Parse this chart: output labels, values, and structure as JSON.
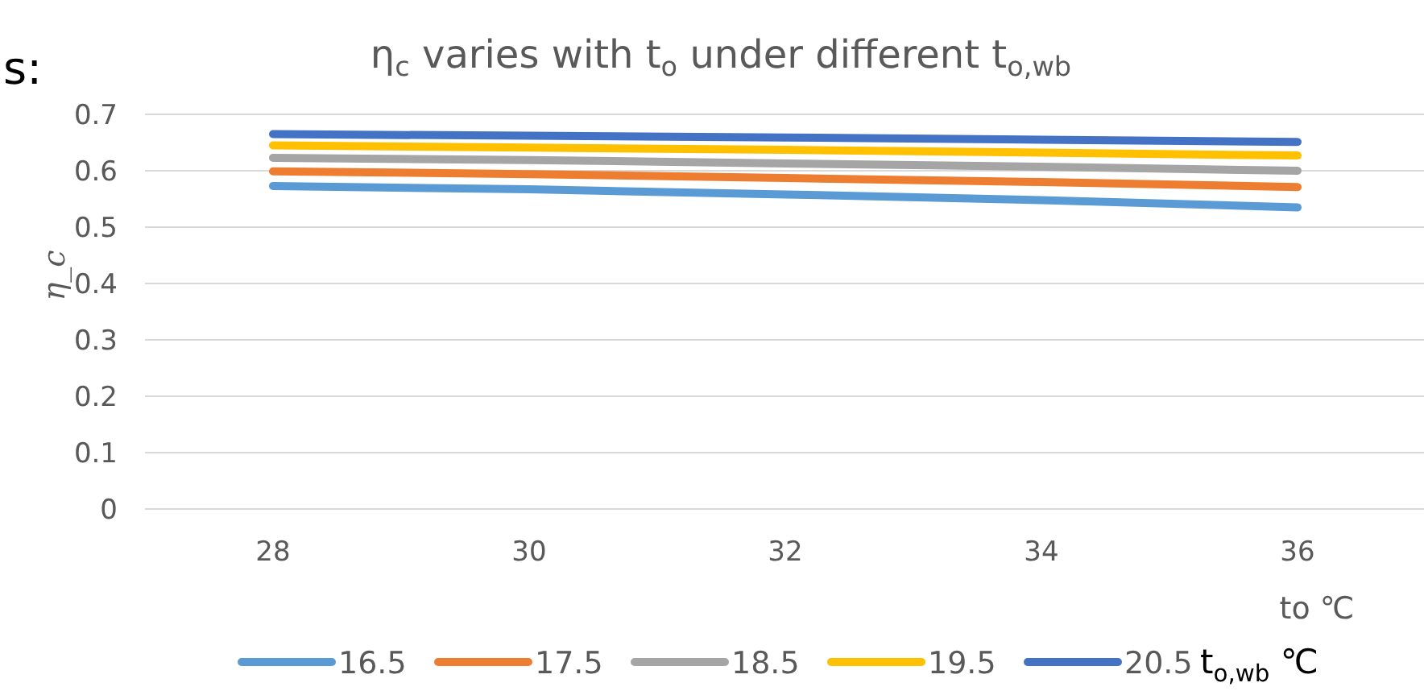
{
  "chart_data": {
    "type": "line",
    "title": "η$_{c}$ varies with t$_{o}$ under different t$_{o,wb}$",
    "xlabel": "to  ℃",
    "ylabel": "η_c",
    "legend_title": "t$_{o,wb}$ ℃",
    "annotations": [
      "s:"
    ],
    "categories": [
      "28",
      "30",
      "32",
      "34",
      "36"
    ],
    "series": [
      {
        "name": "16.5",
        "color": "#5b9bd5",
        "values": [
          0.573,
          0.567,
          0.558,
          0.548,
          0.535
        ]
      },
      {
        "name": "17.5",
        "color": "#ed7d31",
        "values": [
          0.599,
          0.594,
          0.587,
          0.58,
          0.571
        ]
      },
      {
        "name": "18.5",
        "color": "#a5a5a5",
        "values": [
          0.623,
          0.619,
          0.613,
          0.607,
          0.6
        ]
      },
      {
        "name": "19.5",
        "color": "#ffc000",
        "values": [
          0.645,
          0.641,
          0.637,
          0.632,
          0.627
        ]
      },
      {
        "name": "20.5",
        "color": "#4472c4",
        "values": [
          0.665,
          0.662,
          0.659,
          0.655,
          0.651
        ]
      }
    ],
    "ylim": [
      0,
      0.7
    ],
    "yticks": [
      0,
      0.1,
      0.2,
      0.3,
      0.4,
      0.5,
      0.6,
      0.7
    ],
    "grid": "y",
    "legend": "bottom",
    "marker": "none",
    "line_style": "solid"
  }
}
